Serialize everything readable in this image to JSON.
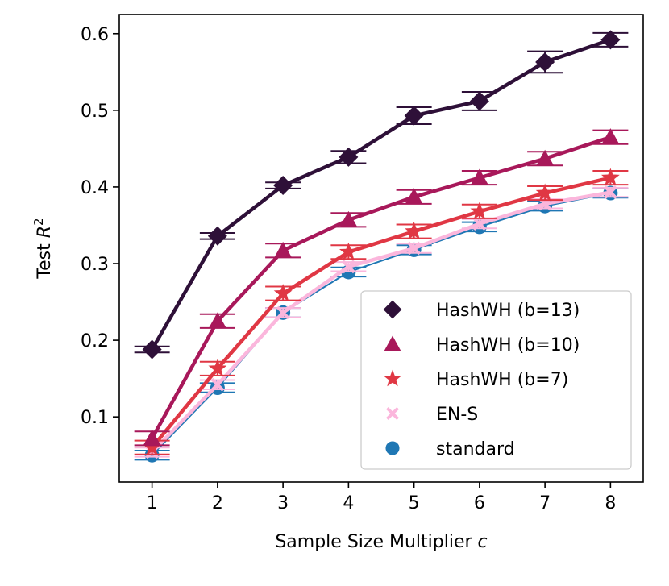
{
  "chart_data": {
    "type": "line",
    "title": "",
    "xlabel_text": "Sample Size Multiplier ",
    "xlabel_var": "c",
    "ylabel_text": "Test ",
    "ylabel_var": "R",
    "ylabel_sup": "2",
    "x": [
      1,
      2,
      3,
      4,
      5,
      6,
      7,
      8
    ],
    "x_tick_labels": [
      "1",
      "2",
      "3",
      "4",
      "5",
      "6",
      "7",
      "8"
    ],
    "xlim": [
      0.5,
      8.5
    ],
    "ylim": [
      0.015,
      0.625
    ],
    "y_ticks": [
      0.1,
      0.2,
      0.3,
      0.4,
      0.5,
      0.6
    ],
    "y_tick_labels": [
      "0.1",
      "0.2",
      "0.3",
      "0.4",
      "0.5",
      "0.6"
    ],
    "legend_position": "lower-right",
    "series": [
      {
        "name": "standard",
        "legend_label": "standard",
        "color": "#1f77b4",
        "marker": "circle",
        "line_width": "thin",
        "values": [
          0.05,
          0.138,
          0.236,
          0.289,
          0.318,
          0.348,
          0.375,
          0.392
        ],
        "err": [
          0.006,
          0.006,
          0.006,
          0.006,
          0.006,
          0.006,
          0.006,
          0.006
        ]
      },
      {
        "name": "en-s",
        "legend_label": "EN-S",
        "color": "#fbb6dc",
        "marker": "x",
        "line_width": "thick",
        "values": [
          0.054,
          0.142,
          0.236,
          0.296,
          0.32,
          0.352,
          0.378,
          0.393
        ],
        "err": [
          0.006,
          0.006,
          0.006,
          0.006,
          0.006,
          0.006,
          0.006,
          0.006
        ]
      },
      {
        "name": "hashwh-b7",
        "legend_label": "HashWH (b=7)",
        "color": "#e03744",
        "marker": "star",
        "line_width": "thick",
        "values": [
          0.06,
          0.163,
          0.261,
          0.315,
          0.342,
          0.368,
          0.392,
          0.412
        ],
        "err": [
          0.009,
          0.009,
          0.009,
          0.009,
          0.009,
          0.009,
          0.009,
          0.009
        ]
      },
      {
        "name": "hashwh-b10",
        "legend_label": "HashWH (b=10)",
        "color": "#a8185a",
        "marker": "triangle",
        "line_width": "thick",
        "values": [
          0.072,
          0.225,
          0.317,
          0.357,
          0.387,
          0.412,
          0.437,
          0.465
        ],
        "err": [
          0.009,
          0.009,
          0.009,
          0.009,
          0.009,
          0.009,
          0.009,
          0.009
        ]
      },
      {
        "name": "hashwh-b13",
        "legend_label": "HashWH (b=13)",
        "color": "#2e1038",
        "marker": "diamond",
        "line_width": "thick",
        "values": [
          0.188,
          0.336,
          0.402,
          0.439,
          0.493,
          0.512,
          0.563,
          0.592
        ],
        "err": [
          0.004,
          0.004,
          0.004,
          0.008,
          0.011,
          0.012,
          0.014,
          0.009
        ]
      }
    ],
    "legend_order": [
      "hashwh-b13",
      "hashwh-b10",
      "hashwh-b7",
      "en-s",
      "standard"
    ]
  }
}
